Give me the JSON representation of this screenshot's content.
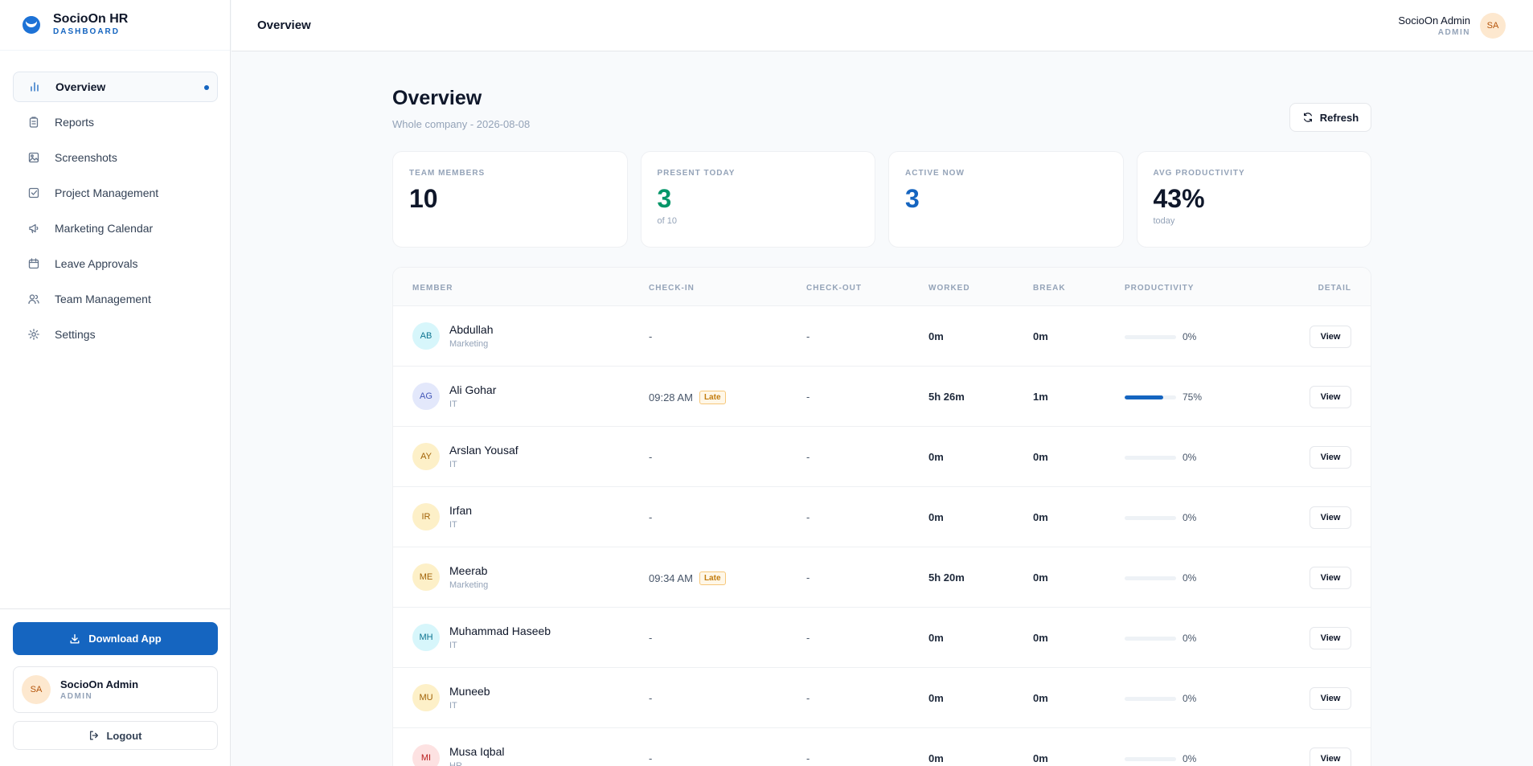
{
  "brand": {
    "title": "SocioOn HR",
    "subtitle": "DASHBOARD"
  },
  "nav": [
    {
      "label": "Overview",
      "icon": "bar-chart-icon",
      "active": true
    },
    {
      "label": "Reports",
      "icon": "clipboard-icon"
    },
    {
      "label": "Screenshots",
      "icon": "image-icon"
    },
    {
      "label": "Project Management",
      "icon": "checkbox-icon"
    },
    {
      "label": "Marketing Calendar",
      "icon": "megaphone-icon"
    },
    {
      "label": "Leave Approvals",
      "icon": "calendar-icon"
    },
    {
      "label": "Team Management",
      "icon": "user-group-icon"
    },
    {
      "label": "Settings",
      "icon": "gear-icon"
    }
  ],
  "sidebar_bottom": {
    "download_label": "Download App",
    "user_initials": "SA",
    "user_name": "SocioOn Admin",
    "user_role": "ADMIN",
    "logout_label": "Logout"
  },
  "header": {
    "title": "Overview",
    "user_name": "SocioOn Admin",
    "user_role": "ADMIN",
    "user_initials": "SA"
  },
  "page": {
    "title": "Overview",
    "subtitle": "Whole company - 2026-08-08",
    "refresh_label": "Refresh"
  },
  "stats": [
    {
      "label": "TEAM MEMBERS",
      "value": "10",
      "sub": "",
      "color": "#0f172a"
    },
    {
      "label": "PRESENT TODAY",
      "value": "3",
      "sub": "of 10",
      "color": "#059669"
    },
    {
      "label": "ACTIVE NOW",
      "value": "3",
      "sub": "",
      "color": "#1565c0"
    },
    {
      "label": "AVG PRODUCTIVITY",
      "value": "43%",
      "sub": "today",
      "color": "#0f172a"
    }
  ],
  "table": {
    "headers": {
      "member": "MEMBER",
      "checkin": "CHECK-IN",
      "checkout": "CHECK-OUT",
      "worked": "WORKED",
      "break": "BREAK",
      "productivity": "PRODUCTIVITY",
      "detail": "DETAIL"
    },
    "view_label": "View",
    "late_label": "Late",
    "rows": [
      {
        "initials": "AB",
        "name": "Abdullah",
        "dept": "Marketing",
        "checkin": "-",
        "late": false,
        "checkout": "-",
        "worked": "0m",
        "break": "0m",
        "productivity": 0,
        "productivity_label": "0%",
        "avatar_bg": "#d7f6fb",
        "avatar_fg": "#0e7490"
      },
      {
        "initials": "AG",
        "name": "Ali Gohar",
        "dept": "IT",
        "checkin": "09:28 AM",
        "late": true,
        "checkout": "-",
        "worked": "5h 26m",
        "break": "1m",
        "productivity": 75,
        "productivity_label": "75%",
        "avatar_bg": "#e3e8fb",
        "avatar_fg": "#4458b8"
      },
      {
        "initials": "AY",
        "name": "Arslan Yousaf",
        "dept": "IT",
        "checkin": "-",
        "late": false,
        "checkout": "-",
        "worked": "0m",
        "break": "0m",
        "productivity": 0,
        "productivity_label": "0%",
        "avatar_bg": "#fdf0c8",
        "avatar_fg": "#a16207"
      },
      {
        "initials": "IR",
        "name": "Irfan",
        "dept": "IT",
        "checkin": "-",
        "late": false,
        "checkout": "-",
        "worked": "0m",
        "break": "0m",
        "productivity": 0,
        "productivity_label": "0%",
        "avatar_bg": "#fdf0c8",
        "avatar_fg": "#a16207"
      },
      {
        "initials": "ME",
        "name": "Meerab",
        "dept": "Marketing",
        "checkin": "09:34 AM",
        "late": true,
        "checkout": "-",
        "worked": "5h 20m",
        "break": "0m",
        "productivity": 0,
        "productivity_label": "0%",
        "avatar_bg": "#fdf0c8",
        "avatar_fg": "#a16207"
      },
      {
        "initials": "MH",
        "name": "Muhammad Haseeb",
        "dept": "IT",
        "checkin": "-",
        "late": false,
        "checkout": "-",
        "worked": "0m",
        "break": "0m",
        "productivity": 0,
        "productivity_label": "0%",
        "avatar_bg": "#d7f6fb",
        "avatar_fg": "#0e7490"
      },
      {
        "initials": "MU",
        "name": "Muneeb",
        "dept": "IT",
        "checkin": "-",
        "late": false,
        "checkout": "-",
        "worked": "0m",
        "break": "0m",
        "productivity": 0,
        "productivity_label": "0%",
        "avatar_bg": "#fdf0c8",
        "avatar_fg": "#a16207"
      },
      {
        "initials": "MI",
        "name": "Musa Iqbal",
        "dept": "HR",
        "checkin": "-",
        "late": false,
        "checkout": "-",
        "worked": "0m",
        "break": "0m",
        "productivity": 0,
        "productivity_label": "0%",
        "avatar_bg": "#fde2e2",
        "avatar_fg": "#b91c1c"
      }
    ]
  }
}
